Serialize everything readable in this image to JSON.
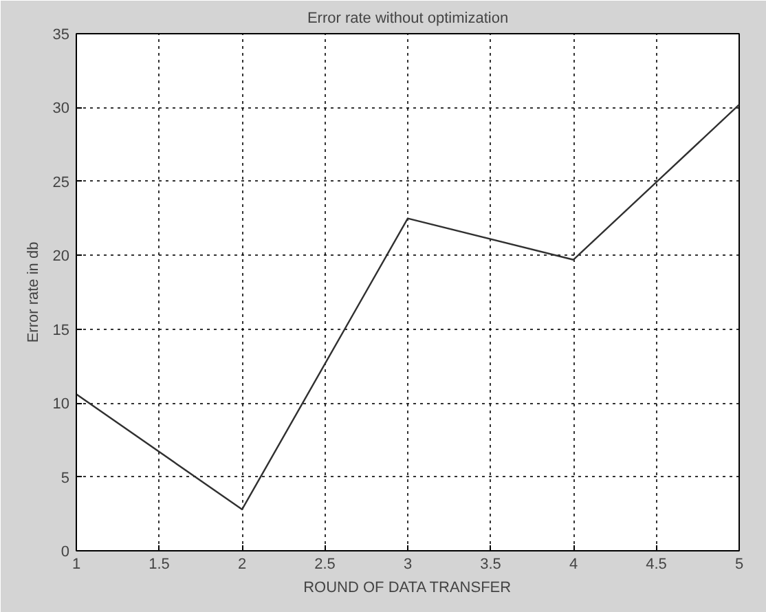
{
  "chart_data": {
    "type": "line",
    "title": "Error rate without optimization",
    "xlabel": "ROUND OF DATA TRANSFER",
    "ylabel": "Error rate in db",
    "x": [
      1,
      2,
      3,
      4,
      5
    ],
    "series": [
      {
        "color": "#303030",
        "values": [
          10.6,
          2.8,
          22.5,
          19.7,
          30.2
        ]
      }
    ],
    "xlim": [
      1,
      5
    ],
    "xticks": [
      1,
      1.5,
      2,
      2.5,
      3,
      3.5,
      4,
      4.5,
      5
    ],
    "ylim": [
      0,
      35
    ],
    "yticks": [
      0,
      5,
      10,
      15,
      20,
      25,
      30,
      35
    ],
    "grid": true,
    "line_style": "solid"
  }
}
